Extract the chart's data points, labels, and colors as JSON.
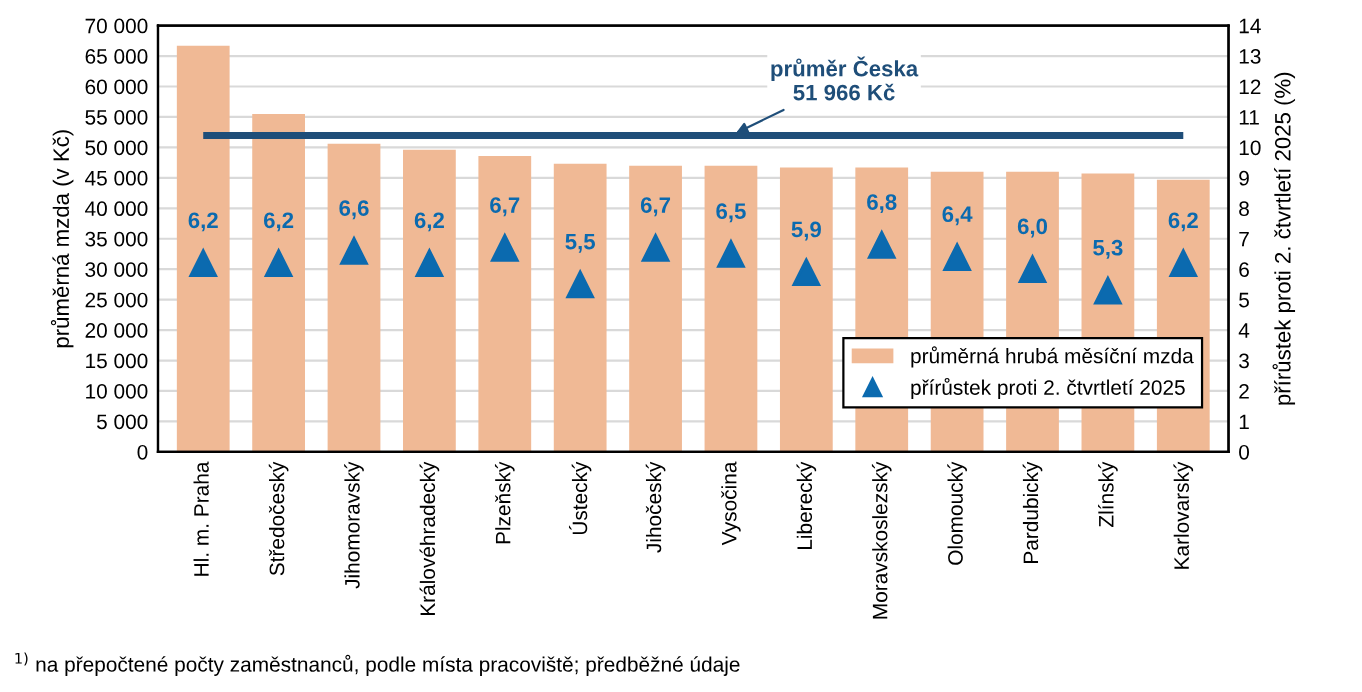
{
  "chart_data": {
    "type": "bar",
    "categories": [
      "Hl. m. Praha",
      "Středočeský",
      "Jihomoravský",
      "Královéhradecký",
      "Plzeňský",
      "Ústecký",
      "Jihočeský",
      "Vysočina",
      "Liberecký",
      "Moravskoslezský",
      "Olomoucký",
      "Pardubický",
      "Zlínský",
      "Karlovarský"
    ],
    "series": [
      {
        "name": "průměrná hrubá měsíční mzda",
        "color": "#f0b995",
        "values": [
          66700,
          55500,
          50600,
          49600,
          48600,
          47300,
          47000,
          47000,
          46700,
          46700,
          46000,
          46000,
          45700,
          44700
        ]
      },
      {
        "name": "přírůstek proti 2. čtvrtletí 2025",
        "type": "scatter",
        "axis": "y2",
        "color": "#0b6aaf",
        "marker": "triangle",
        "values": [
          6.2,
          6.2,
          6.6,
          6.2,
          6.7,
          5.5,
          6.7,
          6.5,
          5.9,
          6.8,
          6.4,
          6.0,
          5.3,
          6.2
        ],
        "value_labels": [
          "6,2",
          "6,2",
          "6,6",
          "6,2",
          "6,7",
          "5,5",
          "6,7",
          "6,5",
          "5,9",
          "6,8",
          "6,4",
          "6,0",
          "5,3",
          "6,2"
        ]
      }
    ],
    "ylabel": "průměrná mzda (v Kč)",
    "y2label": "přírůstek proti 2. čtvrtletí 2025 (%)",
    "ylim": [
      0,
      70000
    ],
    "yticks": [
      {
        "value": 0,
        "label": "0"
      },
      {
        "value": 5000,
        "label": "5 000"
      },
      {
        "value": 10000,
        "label": "10 000"
      },
      {
        "value": 15000,
        "label": "15 000"
      },
      {
        "value": 20000,
        "label": "20 000"
      },
      {
        "value": 25000,
        "label": "25 000"
      },
      {
        "value": 30000,
        "label": "30 000"
      },
      {
        "value": 35000,
        "label": "35 000"
      },
      {
        "value": 40000,
        "label": "40 000"
      },
      {
        "value": 45000,
        "label": "45 000"
      },
      {
        "value": 50000,
        "label": "50 000"
      },
      {
        "value": 55000,
        "label": "55 000"
      },
      {
        "value": 60000,
        "label": "60 000"
      },
      {
        "value": 65000,
        "label": "65 000"
      },
      {
        "value": 70000,
        "label": "70 000"
      }
    ],
    "y2lim": [
      0,
      14
    ],
    "y2ticks": [
      0,
      1,
      2,
      3,
      4,
      5,
      6,
      7,
      8,
      9,
      10,
      11,
      12,
      13,
      14
    ],
    "ref_lines": [
      {
        "axis": "y",
        "value": 51966,
        "label": "průměr Česka\n51 966 Kč",
        "color": "#1f4e79",
        "line_style": "solid"
      }
    ],
    "annotations": [
      "$^{1)}$ na přepočtené počty zaměstnanců, podle místa pracoviště; předběžné údaje"
    ],
    "grid": "y",
    "legend": "bottom right"
  }
}
